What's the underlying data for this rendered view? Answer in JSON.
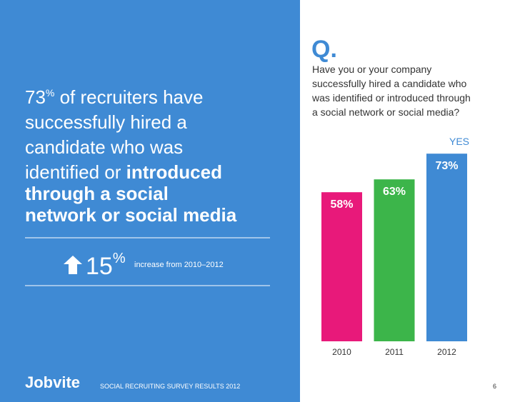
{
  "headline": {
    "lines": [
      [
        "73",
        "%",
        " of recruiters have"
      ],
      [
        "successfully hired a"
      ],
      [
        "candidate who was"
      ],
      [
        "identified or ",
        "introduced"
      ],
      [
        "through a social"
      ],
      [
        "network or social media"
      ]
    ]
  },
  "stat": {
    "number": "15",
    "unit": "%",
    "text": "increase from 2010–2012"
  },
  "footer": {
    "logo": "Jobvite",
    "caption": "SOCIAL RECRUITING SURVEY RESULTS 2012",
    "page": "6"
  },
  "chart_data": {
    "type": "bar",
    "title": "Q.",
    "question": [
      "Have you or your company",
      "successfully hired a candidate who",
      "was identified or introduced through",
      "a social network or social media?"
    ],
    "annotation": "YES",
    "categories": [
      "2010",
      "2011",
      "2012"
    ],
    "values": [
      58,
      63,
      73
    ],
    "value_labels": [
      "58%",
      "63%",
      "73%"
    ],
    "colors": [
      "#e8197a",
      "#3cb54a",
      "#3f8ad4"
    ]
  }
}
